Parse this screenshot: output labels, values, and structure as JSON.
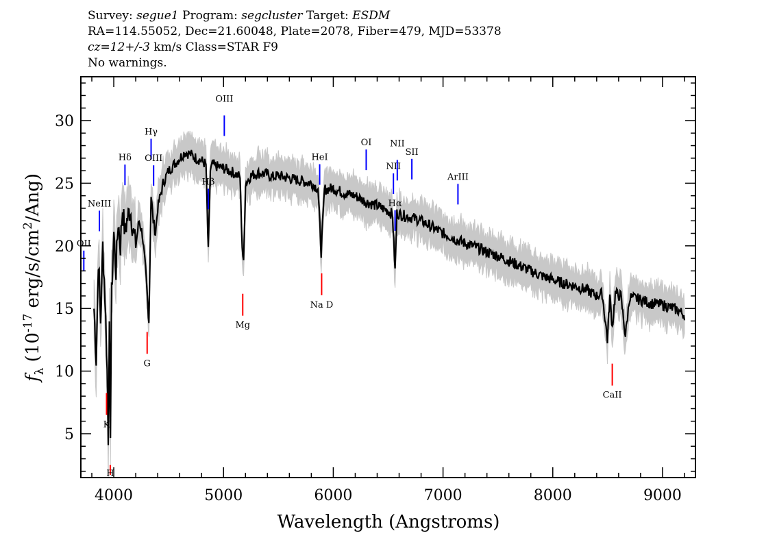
{
  "header": {
    "survey_label": "Survey:",
    "survey": "segue1",
    "program_label": "Program:",
    "program": "segcluster",
    "target_label": "Target:",
    "target": "ESDM",
    "line2": "RA=114.55052, Dec=21.60048, Plate=2078, Fiber=479, MJD=53378",
    "redshift": "cz=12+/-3",
    "redshift_unit": "km/s",
    "class_text": "Class=STAR F9",
    "warnings": "No warnings."
  },
  "chart_data": {
    "type": "line",
    "xlabel": "Wavelength (Angstroms)",
    "ylabel_main": "f",
    "ylabel_sub": "λ",
    "ylabel_rest": " (10",
    "ylabel_exp": "-17",
    "ylabel_tail": " erg/s/cm",
    "ylabel_exp2": "2",
    "ylabel_end": "/Ang)",
    "xlim": [
      3700,
      9300
    ],
    "ylim": [
      1.5,
      33.5
    ],
    "xticks": [
      4000,
      5000,
      6000,
      7000,
      8000,
      9000
    ],
    "xtick_labels": [
      "4000",
      "5000",
      "6000",
      "7000",
      "8000",
      "9000"
    ],
    "yticks": [
      5,
      10,
      15,
      20,
      25,
      30
    ],
    "ytick_labels": [
      "5",
      "10",
      "15",
      "20",
      "25",
      "30"
    ],
    "series": [
      {
        "color": "#000000",
        "x": [
          3820,
          3840,
          3860,
          3880,
          3900,
          3920,
          3940,
          3950,
          3960,
          3970,
          3980,
          4000,
          4020,
          4040,
          4060,
          4080,
          4102,
          4120,
          4150,
          4180,
          4200,
          4230,
          4260,
          4290,
          4305,
          4320,
          4340,
          4360,
          4380,
          4400,
          4450,
          4500,
          4550,
          4600,
          4650,
          4700,
          4750,
          4800,
          4840,
          4861,
          4880,
          4900,
          4950,
          5000,
          5050,
          5100,
          5150,
          5170,
          5183,
          5200,
          5250,
          5300,
          5350,
          5400,
          5450,
          5500,
          5600,
          5700,
          5800,
          5860,
          5890,
          5920,
          6000,
          6100,
          6200,
          6300,
          6400,
          6500,
          6540,
          6563,
          6580,
          6650,
          6700,
          6800,
          6900,
          7000,
          7100,
          7200,
          7300,
          7400,
          7500,
          7600,
          7700,
          7800,
          7900,
          8000,
          8100,
          8200,
          8300,
          8400,
          8450,
          8498,
          8520,
          8542,
          8570,
          8620,
          8662,
          8700,
          8800,
          8900,
          9000,
          9100,
          9150,
          9200
        ],
        "y": [
          15,
          11,
          19,
          14,
          20,
          16,
          10,
          4.8,
          13,
          5.5,
          16,
          21,
          18,
          22,
          20,
          23,
          21,
          22,
          23,
          21,
          20,
          22,
          21,
          18,
          16,
          14,
          24,
          22,
          21,
          23,
          25,
          26,
          26.5,
          27,
          27.5,
          27.3,
          27,
          26.8,
          26.5,
          19.5,
          26,
          26.5,
          26.3,
          26.2,
          26,
          25.8,
          25.5,
          20,
          18.5,
          25,
          25.6,
          25.8,
          25.8,
          25.7,
          25.5,
          25.6,
          25.4,
          25.2,
          25.0,
          24.6,
          19.5,
          24.5,
          24.6,
          24.2,
          24.0,
          23.5,
          23.2,
          22.8,
          22.5,
          18,
          22.6,
          22.4,
          22.3,
          22.0,
          21.5,
          21.0,
          20.6,
          20.2,
          19.9,
          19.5,
          19.2,
          18.8,
          18.4,
          18.0,
          17.6,
          17.3,
          17.0,
          16.8,
          16.5,
          16.0,
          16.2,
          12.5,
          16.0,
          13.5,
          16.2,
          16.0,
          12.8,
          15.9,
          15.7,
          15.4,
          15.3,
          15.0,
          14.8,
          14.5
        ]
      }
    ],
    "line_labels": [
      {
        "name": "OII",
        "x": 3727,
        "color": "#0000ff"
      },
      {
        "name": "NeIII",
        "x": 3869,
        "color": "#0000ff"
      },
      {
        "name": "Hδ",
        "x": 4102,
        "color": "#0000ff"
      },
      {
        "name": "Hγ",
        "x": 4340,
        "color": "#0000ff"
      },
      {
        "name": "OIII",
        "x": 4363,
        "color": "#0000ff"
      },
      {
        "name": "Hβ",
        "x": 4861,
        "color": "#0000ff"
      },
      {
        "name": "OIII",
        "x": 5007,
        "color": "#0000ff"
      },
      {
        "name": "HeI",
        "x": 5876,
        "color": "#0000ff"
      },
      {
        "name": "OI",
        "x": 6300,
        "color": "#0000ff"
      },
      {
        "name": "NII",
        "x": 6548,
        "color": "#0000ff"
      },
      {
        "name": "Hα",
        "x": 6563,
        "color": "#0000ff"
      },
      {
        "name": "NII",
        "x": 6583,
        "color": "#0000ff"
      },
      {
        "name": "SII",
        "x": 6716,
        "color": "#0000ff"
      },
      {
        "name": "ArIII",
        "x": 7136,
        "color": "#0000ff"
      },
      {
        "name": "K",
        "x": 3934,
        "color": "#ff0000"
      },
      {
        "name": "H",
        "x": 3968,
        "color": "#ff0000"
      },
      {
        "name": "G",
        "x": 4304,
        "color": "#ff0000"
      },
      {
        "name": "Mg",
        "x": 5175,
        "color": "#ff0000"
      },
      {
        "name": "Na D",
        "x": 5894,
        "color": "#ff0000"
      },
      {
        "name": "CaII",
        "x": 8542,
        "color": "#ff0000"
      }
    ],
    "error_band_color": "#c8c8c8",
    "grid": false
  }
}
